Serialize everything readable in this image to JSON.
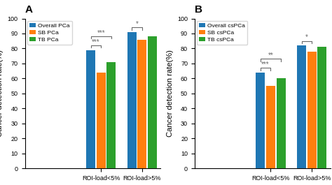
{
  "chart_data": [
    {
      "type": "bar",
      "title": "A",
      "categories": [
        "ROI-load<5%",
        "ROI-load>5%"
      ],
      "series": [
        {
          "name": "Overall PCa",
          "values": [
            79,
            91
          ]
        },
        {
          "name": "SB PCa",
          "values": [
            64,
            86
          ]
        },
        {
          "name": "TB PCa",
          "values": [
            71,
            88
          ]
        }
      ],
      "y_label": "Cancer detection rate(%)",
      "ylim": [
        0,
        100
      ],
      "yticks": [
        0,
        10,
        20,
        30,
        40,
        50,
        60,
        70,
        80,
        90,
        100
      ],
      "legend": "upper left",
      "annotations": [
        {
          "text": "***",
          "category": "ROI-load<5%",
          "between": [
            "Overall PCa",
            "SB PCa"
          ]
        },
        {
          "text": "***",
          "category": "ROI-load<5%",
          "between": [
            "Overall PCa",
            "TB PCa"
          ]
        },
        {
          "text": "*",
          "category": "ROI-load>5%",
          "between": [
            "Overall PCa",
            "SB PCa"
          ]
        }
      ]
    },
    {
      "type": "bar",
      "title": "B",
      "categories": [
        "ROI-load<5%",
        "ROI-load>5%"
      ],
      "series": [
        {
          "name": "Overall csPCa",
          "values": [
            64,
            82
          ]
        },
        {
          "name": "SB csPCa",
          "values": [
            55,
            78
          ]
        },
        {
          "name": "TB csPCa",
          "values": [
            60,
            81
          ]
        }
      ],
      "y_label": "Cancer detection rate(%)",
      "ylim": [
        0,
        100
      ],
      "yticks": [
        0,
        10,
        20,
        30,
        40,
        50,
        60,
        70,
        80,
        90,
        100
      ],
      "legend": "upper left",
      "annotations": [
        {
          "text": "***",
          "category": "ROI-load<5%",
          "between": [
            "Overall csPCa",
            "SB csPCa"
          ]
        },
        {
          "text": "**",
          "category": "ROI-load<5%",
          "between": [
            "Overall csPCa",
            "TB csPCa"
          ]
        },
        {
          "text": "*",
          "category": "ROI-load>5%",
          "between": [
            "Overall csPCa",
            "SB csPCa"
          ]
        }
      ]
    }
  ]
}
